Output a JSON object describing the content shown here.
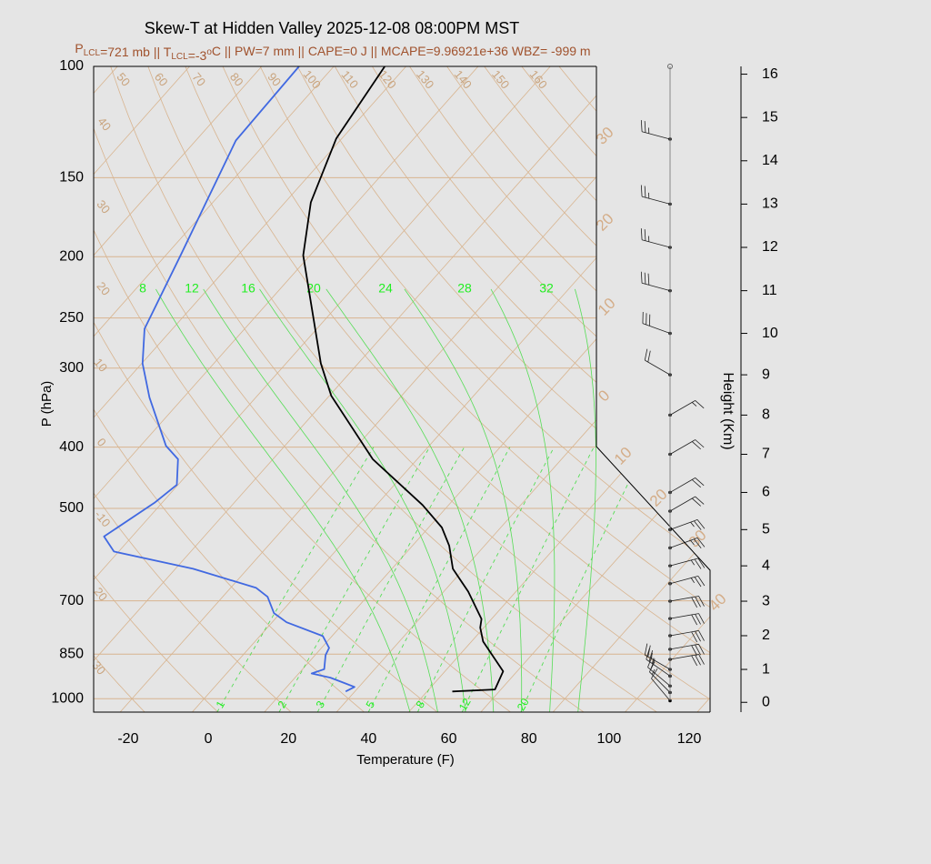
{
  "chart_data": {
    "type": "skewt",
    "title": "Skew-T at Hidden Valley 2025-12-08 08:00PM MST",
    "subtitle": [
      "P",
      {
        "sub": "LCL"
      },
      "=721 mb || T",
      {
        "sub": "LCL"
      },
      "=-3",
      {
        "sup": "o"
      },
      "C || PW=7 mm || CAPE=0 J || MCAPE=9.96921e+36 WBZ= -999 m"
    ],
    "xlabel": "Temperature (F)",
    "ylabel": "P (hPa)",
    "y2label": "Height (Km)",
    "xlim": [
      -28.6,
      125.2
    ],
    "xticks": [
      -20,
      0,
      20,
      40,
      60,
      80,
      100,
      120
    ],
    "ylim": [
      1050,
      100
    ],
    "yticks": [
      100,
      150,
      200,
      250,
      300,
      400,
      500,
      700,
      850,
      1000
    ],
    "log_y": true,
    "y2ticks": [
      0,
      1,
      2,
      3,
      4,
      5,
      6,
      7,
      8,
      9,
      10,
      11,
      12,
      13,
      14,
      15,
      16
    ],
    "series": [
      {
        "color": "#000000",
        "pressure": [
          974,
          967,
          905,
          812,
          772,
          748,
          677,
          623,
          573,
          536,
          494,
          418,
          332,
          295,
          199,
          164,
          130,
          100
        ],
        "values": [
          56.3,
          66.5,
          64.5,
          52.9,
          49.1,
          47.5,
          38.1,
          29.2,
          23.2,
          17.3,
          7.5,
          -15.1,
          -39.5,
          -49.3,
          -77.7,
          -87.6,
          -95.4,
          -99.3
        ]
      },
      {
        "color": "#4169e1",
        "pressure": [
          974,
          958,
          926,
          912,
          898,
          853,
          831,
          796,
          757,
          732,
          690,
          668,
          623,
          585,
          554,
          490,
          459,
          418,
          398,
          334,
          295,
          260,
          199,
          131,
          100
        ],
        "values": [
          29.7,
          30.9,
          22.8,
          17.2,
          19.4,
          16.6,
          15.9,
          11.7,
          -0.4,
          -5.6,
          -10.8,
          -15.6,
          -35.6,
          -59.2,
          -65,
          -59.9,
          -58.3,
          -63.7,
          -69.7,
          -84.5,
          -93.8,
          -101,
          -108.3,
          -120,
          -120.7
        ]
      }
    ],
    "dry_adiabat_labels": [
      50,
      60,
      70,
      80,
      90,
      100,
      110,
      120,
      130,
      140,
      150,
      160
    ],
    "isotherm_labels_left": [
      40,
      30,
      20,
      10,
      0,
      -10,
      20,
      30
    ],
    "isotherm_labels_right": [
      30,
      20,
      10,
      0,
      10,
      20,
      30,
      40
    ],
    "moist_adiabat_labels": [
      8,
      12,
      16,
      20,
      24,
      28,
      32
    ],
    "mixing_ratio_labels": [
      1,
      2,
      3,
      5,
      8,
      12,
      20
    ],
    "winds": {
      "height": [
        0.05,
        0.3,
        0.5,
        0.8,
        1.0,
        1.3,
        1.6,
        2.0,
        2.5,
        3.0,
        3.5,
        4.0,
        4.5,
        5.0,
        5.5,
        6.0,
        7.0,
        8.0,
        9.0,
        10.0,
        11.0,
        12.0,
        13.0,
        14.5
      ],
      "direction": [
        320,
        315,
        310,
        305,
        300,
        80,
        80,
        80,
        80,
        80,
        75,
        75,
        70,
        70,
        60,
        60,
        60,
        60,
        300,
        290,
        285,
        285,
        285,
        285
      ],
      "speed": [
        10,
        15,
        20,
        25,
        25,
        30,
        30,
        30,
        30,
        30,
        25,
        25,
        25,
        25,
        20,
        20,
        20,
        15,
        20,
        30,
        30,
        25,
        25,
        25
      ]
    }
  }
}
